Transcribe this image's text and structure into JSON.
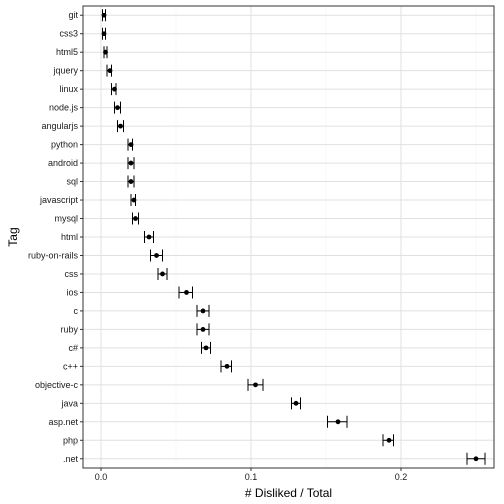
{
  "chart_data": {
    "type": "scatter",
    "title": "",
    "xlabel": "# Disliked / Total",
    "ylabel": "Tag",
    "xlim": [
      -0.012,
      0.262
    ],
    "x_ticks": [
      0.0,
      0.1,
      0.2
    ],
    "x_tick_labels": [
      "0.0",
      "0.1",
      "0.2"
    ],
    "grid": true,
    "error_bars": true,
    "categories": [
      "git",
      "css3",
      "html5",
      "jquery",
      "linux",
      "node.js",
      "angularjs",
      "python",
      "android",
      "sql",
      "javascript",
      "mysql",
      "html",
      "ruby-on-rails",
      "css",
      "ios",
      "c",
      "ruby",
      "c#",
      "c++",
      "objective-c",
      "java",
      "asp.net",
      "php",
      ".net"
    ],
    "values": [
      0.002,
      0.002,
      0.003,
      0.006,
      0.009,
      0.011,
      0.013,
      0.02,
      0.02,
      0.02,
      0.022,
      0.023,
      0.032,
      0.037,
      0.041,
      0.057,
      0.068,
      0.068,
      0.07,
      0.084,
      0.103,
      0.13,
      0.158,
      0.192,
      0.25
    ],
    "lower": [
      0.001,
      0.001,
      0.002,
      0.004,
      0.007,
      0.009,
      0.011,
      0.018,
      0.018,
      0.018,
      0.02,
      0.021,
      0.029,
      0.033,
      0.038,
      0.052,
      0.064,
      0.064,
      0.067,
      0.08,
      0.098,
      0.127,
      0.151,
      0.188,
      0.244
    ],
    "upper": [
      0.003,
      0.003,
      0.004,
      0.007,
      0.01,
      0.013,
      0.015,
      0.021,
      0.022,
      0.022,
      0.023,
      0.025,
      0.035,
      0.041,
      0.044,
      0.061,
      0.072,
      0.072,
      0.073,
      0.087,
      0.108,
      0.133,
      0.164,
      0.195,
      0.256
    ],
    "colors": {
      "point": "#000000",
      "grid_major": "#e0e0e0",
      "grid_minor": "#f3f3f3",
      "panel_border": "#333333"
    }
  }
}
